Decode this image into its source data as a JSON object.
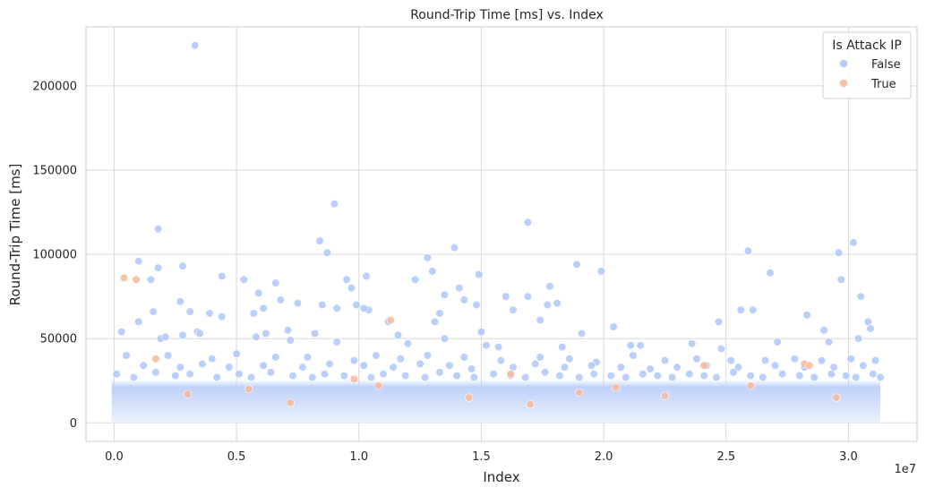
{
  "chart_data": {
    "type": "scatter",
    "title": "Round-Trip Time [ms] vs. Index",
    "xlabel": "Index",
    "ylabel": "Round-Trip Time [ms]",
    "x_offset_label": "1e7",
    "xlim": [
      -0.115,
      3.28
    ],
    "ylim": [
      -11000,
      235000
    ],
    "x_ticks": [
      0.0,
      0.5,
      1.0,
      1.5,
      2.0,
      2.5,
      3.0
    ],
    "x_tick_labels": [
      "0.0",
      "0.5",
      "1.0",
      "1.5",
      "2.0",
      "2.5",
      "3.0"
    ],
    "y_ticks": [
      0,
      50000,
      100000,
      150000,
      200000
    ],
    "y_tick_labels": [
      "0",
      "50000",
      "100000",
      "150000",
      "200000"
    ],
    "grid": true,
    "legend": {
      "title": "Is Attack IP",
      "placement": "top-right"
    },
    "series": [
      {
        "name": "False",
        "color": "#aec7fa",
        "points": [
          [
            0.33,
            224000
          ],
          [
            0.9,
            130000
          ],
          [
            1.69,
            119000
          ],
          [
            0.18,
            115000
          ],
          [
            0.84,
            108000
          ],
          [
            1.39,
            104000
          ],
          [
            3.02,
            107000
          ],
          [
            2.59,
            102000
          ],
          [
            2.96,
            101000
          ],
          [
            0.87,
            101000
          ],
          [
            1.28,
            98000
          ],
          [
            0.1,
            96000
          ],
          [
            1.89,
            94000
          ],
          [
            0.28,
            93000
          ],
          [
            0.18,
            92000
          ],
          [
            1.3,
            90000
          ],
          [
            1.99,
            90000
          ],
          [
            2.68,
            89000
          ],
          [
            0.44,
            87000
          ],
          [
            1.03,
            87000
          ],
          [
            1.49,
            88000
          ],
          [
            0.53,
            85000
          ],
          [
            0.95,
            85000
          ],
          [
            1.23,
            85000
          ],
          [
            2.97,
            85000
          ],
          [
            0.15,
            85000
          ],
          [
            0.66,
            83000
          ],
          [
            0.97,
            80000
          ],
          [
            1.78,
            81000
          ],
          [
            1.41,
            80000
          ],
          [
            0.59,
            77000
          ],
          [
            1.35,
            76000
          ],
          [
            1.69,
            75000
          ],
          [
            1.6,
            75000
          ],
          [
            3.05,
            75000
          ],
          [
            0.68,
            73000
          ],
          [
            1.43,
            73000
          ],
          [
            0.27,
            72000
          ],
          [
            1.81,
            71000
          ],
          [
            1.77,
            70000
          ],
          [
            0.75,
            71000
          ],
          [
            0.99,
            70000
          ],
          [
            1.48,
            70000
          ],
          [
            0.85,
            70000
          ],
          [
            0.31,
            66000
          ],
          [
            0.61,
            68000
          ],
          [
            1.04,
            67000
          ],
          [
            1.63,
            67000
          ],
          [
            2.56,
            67000
          ],
          [
            2.61,
            67000
          ],
          [
            1.33,
            65000
          ],
          [
            2.83,
            64000
          ],
          [
            0.39,
            65000
          ],
          [
            0.44,
            63000
          ],
          [
            0.57,
            65000
          ],
          [
            0.16,
            66000
          ],
          [
            1.02,
            68000
          ],
          [
            0.91,
            68000
          ],
          [
            0.1,
            60000
          ],
          [
            1.12,
            60000
          ],
          [
            1.31,
            60000
          ],
          [
            1.74,
            61000
          ],
          [
            2.04,
            57000
          ],
          [
            2.47,
            60000
          ],
          [
            3.08,
            60000
          ],
          [
            3.09,
            56000
          ],
          [
            0.34,
            54000
          ],
          [
            0.35,
            53000
          ],
          [
            0.62,
            53000
          ],
          [
            0.71,
            55000
          ],
          [
            0.82,
            53000
          ],
          [
            1.16,
            52000
          ],
          [
            1.5,
            54000
          ],
          [
            1.91,
            53000
          ],
          [
            2.9,
            55000
          ],
          [
            2.71,
            48000
          ],
          [
            0.28,
            52000
          ],
          [
            0.03,
            54000
          ],
          [
            0.19,
            50000
          ],
          [
            0.21,
            51000
          ],
          [
            0.58,
            51000
          ],
          [
            0.72,
            49000
          ],
          [
            0.91,
            48000
          ],
          [
            1.2,
            47000
          ],
          [
            1.35,
            50000
          ],
          [
            1.52,
            46000
          ],
          [
            1.57,
            45000
          ],
          [
            1.83,
            45000
          ],
          [
            2.11,
            46000
          ],
          [
            2.15,
            46000
          ],
          [
            2.36,
            47000
          ],
          [
            2.48,
            44000
          ],
          [
            2.92,
            48000
          ],
          [
            3.04,
            50000
          ],
          [
            3.01,
            38000
          ],
          [
            0.05,
            40000
          ],
          [
            0.22,
            40000
          ],
          [
            0.4,
            38000
          ],
          [
            0.5,
            41000
          ],
          [
            0.66,
            39000
          ],
          [
            0.79,
            39000
          ],
          [
            0.98,
            37000
          ],
          [
            1.07,
            40000
          ],
          [
            1.17,
            38000
          ],
          [
            1.28,
            40000
          ],
          [
            1.43,
            39000
          ],
          [
            1.58,
            37000
          ],
          [
            1.74,
            39000
          ],
          [
            1.86,
            38000
          ],
          [
            1.97,
            36000
          ],
          [
            2.12,
            40000
          ],
          [
            2.25,
            37000
          ],
          [
            2.38,
            38000
          ],
          [
            2.52,
            37000
          ],
          [
            2.66,
            37000
          ],
          [
            2.78,
            38000
          ],
          [
            2.89,
            37000
          ],
          [
            3.11,
            37000
          ],
          [
            0.12,
            34000
          ],
          [
            0.27,
            33000
          ],
          [
            0.36,
            35000
          ],
          [
            0.47,
            33000
          ],
          [
            0.61,
            34000
          ],
          [
            0.77,
            33000
          ],
          [
            0.88,
            35000
          ],
          [
            1.02,
            34000
          ],
          [
            1.14,
            33000
          ],
          [
            1.25,
            35000
          ],
          [
            1.37,
            34000
          ],
          [
            1.46,
            32000
          ],
          [
            1.63,
            33000
          ],
          [
            1.72,
            35000
          ],
          [
            1.84,
            33000
          ],
          [
            1.95,
            34000
          ],
          [
            2.07,
            33000
          ],
          [
            2.19,
            32000
          ],
          [
            2.3,
            33000
          ],
          [
            2.42,
            34000
          ],
          [
            2.55,
            33000
          ],
          [
            2.7,
            34000
          ],
          [
            2.82,
            33000
          ],
          [
            2.94,
            33000
          ],
          [
            3.06,
            34000
          ],
          [
            0.01,
            29000
          ],
          [
            0.08,
            27000
          ],
          [
            0.17,
            30000
          ],
          [
            0.25,
            28000
          ],
          [
            0.31,
            29000
          ],
          [
            0.42,
            27000
          ],
          [
            0.51,
            29000
          ],
          [
            0.56,
            27000
          ],
          [
            0.64,
            30000
          ],
          [
            0.73,
            28000
          ],
          [
            0.81,
            27000
          ],
          [
            0.86,
            29000
          ],
          [
            0.94,
            28000
          ],
          [
            1.05,
            27000
          ],
          [
            1.1,
            29000
          ],
          [
            1.19,
            28000
          ],
          [
            1.27,
            27000
          ],
          [
            1.33,
            30000
          ],
          [
            1.4,
            28000
          ],
          [
            1.47,
            27000
          ],
          [
            1.55,
            29000
          ],
          [
            1.62,
            28000
          ],
          [
            1.68,
            27000
          ],
          [
            1.76,
            30000
          ],
          [
            1.82,
            28000
          ],
          [
            1.9,
            27000
          ],
          [
            1.96,
            29000
          ],
          [
            2.03,
            28000
          ],
          [
            2.09,
            27000
          ],
          [
            2.16,
            29000
          ],
          [
            2.22,
            28000
          ],
          [
            2.28,
            27000
          ],
          [
            2.35,
            29000
          ],
          [
            2.41,
            28000
          ],
          [
            2.46,
            27000
          ],
          [
            2.53,
            30000
          ],
          [
            2.6,
            28000
          ],
          [
            2.65,
            27000
          ],
          [
            2.73,
            29000
          ],
          [
            2.8,
            28000
          ],
          [
            2.86,
            27000
          ],
          [
            2.93,
            29000
          ],
          [
            2.99,
            28000
          ],
          [
            3.03,
            27000
          ],
          [
            3.1,
            29000
          ],
          [
            3.13,
            27000
          ]
        ]
      },
      {
        "name": "True",
        "color": "#f7b99a",
        "points": [
          [
            0.04,
            86000
          ],
          [
            0.09,
            85000
          ],
          [
            1.13,
            61000
          ],
          [
            0.17,
            38000
          ],
          [
            2.41,
            34000
          ],
          [
            2.82,
            35000
          ],
          [
            2.84,
            34000
          ],
          [
            1.62,
            29000
          ],
          [
            0.98,
            26000
          ],
          [
            1.08,
            22000
          ],
          [
            2.05,
            21000
          ],
          [
            2.6,
            22000
          ],
          [
            0.55,
            20000
          ],
          [
            1.9,
            18000
          ],
          [
            0.3,
            17000
          ],
          [
            1.45,
            15000
          ],
          [
            2.25,
            16000
          ],
          [
            2.95,
            15000
          ],
          [
            0.72,
            12000
          ],
          [
            1.7,
            11000
          ]
        ]
      }
    ]
  }
}
